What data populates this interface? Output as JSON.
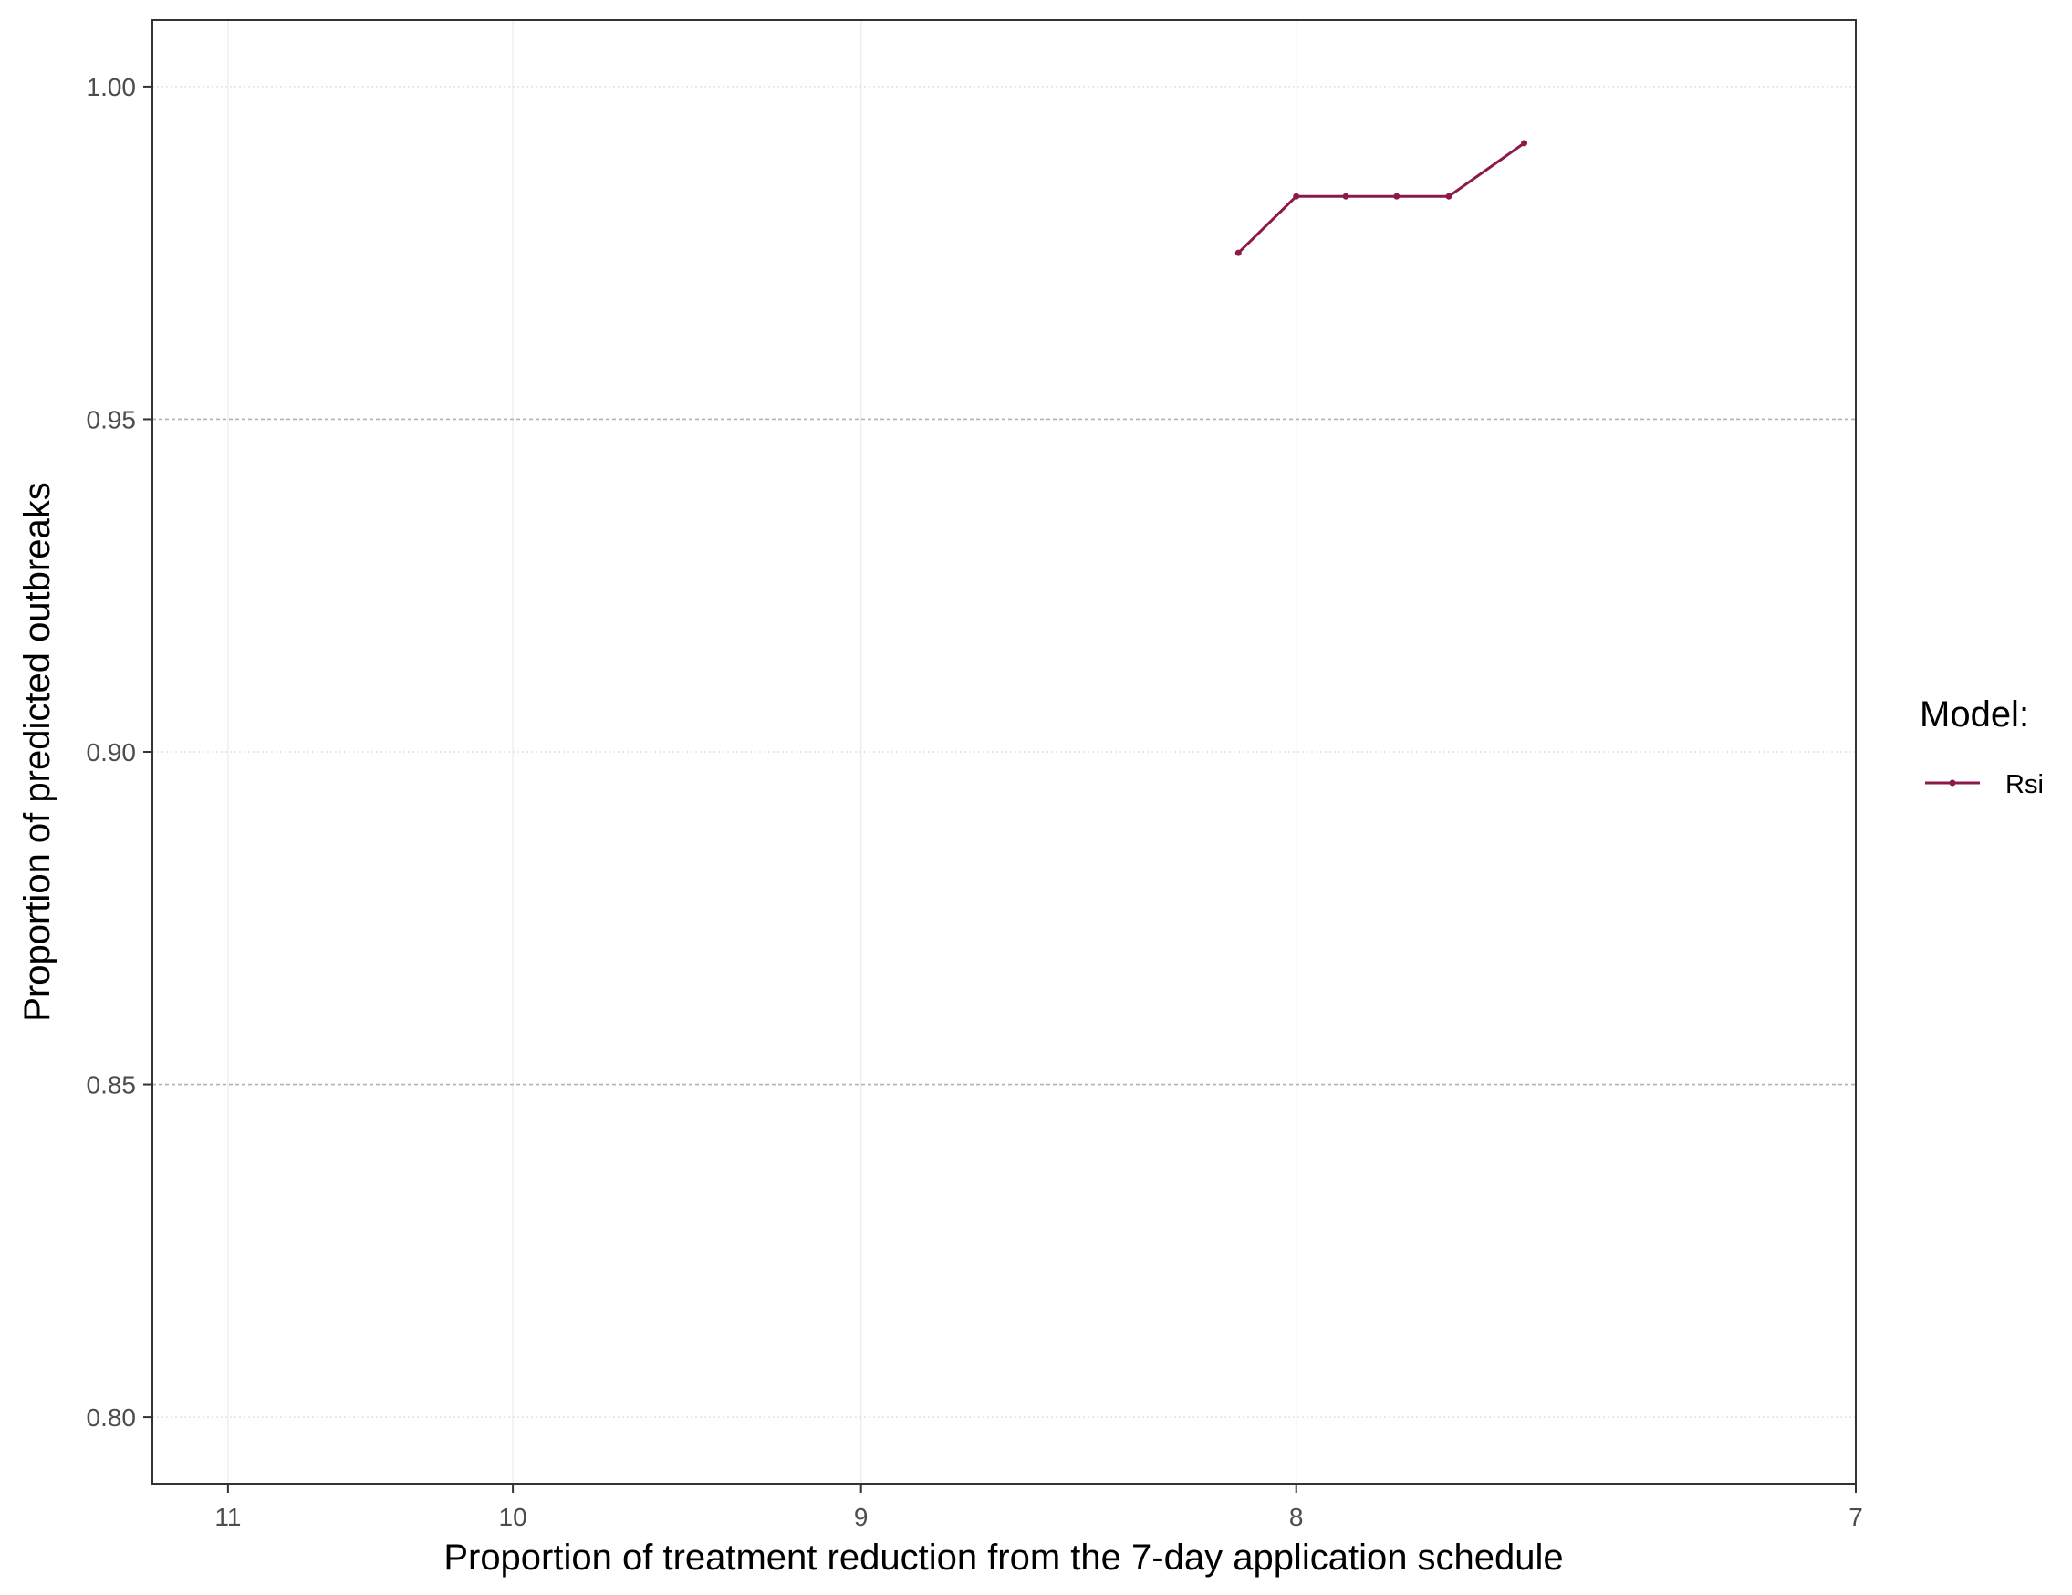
{
  "chart_data": {
    "type": "line",
    "title": "",
    "xlabel": "Proportion of treatment reduction from the 7-day application schedule",
    "ylabel": "Proportion of predicted outbreaks",
    "x_scale": "reciprocal",
    "x_reversed": true,
    "xlim": [
      11.3,
      7
    ],
    "ylim": [
      0.79,
      1.01
    ],
    "x_ticks": [
      {
        "value": 11,
        "label": "11"
      },
      {
        "value": 10,
        "label": "10"
      },
      {
        "value": 9,
        "label": "9"
      },
      {
        "value": 8,
        "label": "8"
      },
      {
        "value": 7,
        "label": "7"
      }
    ],
    "y_ticks": [
      {
        "value": 0.8,
        "label": "0.80"
      },
      {
        "value": 0.85,
        "label": "0.85"
      },
      {
        "value": 0.9,
        "label": "0.90"
      },
      {
        "value": 0.95,
        "label": "0.95"
      },
      {
        "value": 1.0,
        "label": "1.00"
      }
    ],
    "grid": true,
    "legend": {
      "title": "Model:",
      "position": "right"
    },
    "series": [
      {
        "name": "Rsi",
        "color": "#8b1a4a",
        "x": [
          8.12,
          8.0,
          7.9,
          7.8,
          7.7,
          7.56
        ],
        "y": [
          0.975,
          0.9835,
          0.9835,
          0.9835,
          0.9835,
          0.9915
        ]
      }
    ]
  }
}
